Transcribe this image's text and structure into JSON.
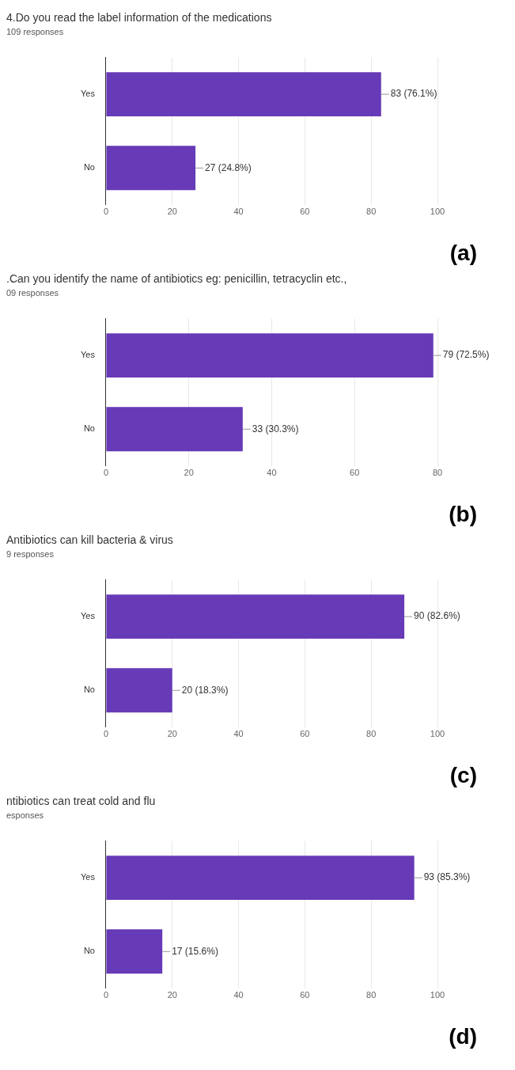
{
  "chart_data": [
    {
      "type": "bar",
      "orientation": "horizontal",
      "title": "4.Do you read the label information of the medications",
      "subtitle": "109 responses",
      "categories": [
        "Yes",
        "No"
      ],
      "values": [
        83,
        27
      ],
      "value_labels": [
        "83 (76.1%)",
        "27 (24.8%)"
      ],
      "color": "#673ab7",
      "xlim": [
        0,
        100
      ],
      "xticks": [
        0,
        20,
        40,
        60,
        80,
        100
      ],
      "grid": "x",
      "legend": false,
      "annotations": [
        "(a)"
      ]
    },
    {
      "type": "bar",
      "orientation": "horizontal",
      "title": ".Can you identify the name of antibiotics eg: penicillin, tetracyclin etc.,",
      "subtitle": "09 responses",
      "categories": [
        "Yes",
        "No"
      ],
      "values": [
        79,
        33
      ],
      "value_labels": [
        "79 (72.5%)",
        "33 (30.3%)"
      ],
      "color": "#673ab7",
      "xlim": [
        0,
        80
      ],
      "xticks": [
        0,
        20,
        40,
        60,
        80
      ],
      "grid": "x",
      "legend": false,
      "annotations": [
        "(b)"
      ]
    },
    {
      "type": "bar",
      "orientation": "horizontal",
      "title": "Antibiotics can kill bacteria & virus",
      "subtitle": "9 responses",
      "categories": [
        "Yes",
        "No"
      ],
      "values": [
        90,
        20
      ],
      "value_labels": [
        "90 (82.6%)",
        "20 (18.3%)"
      ],
      "color": "#673ab7",
      "xlim": [
        0,
        100
      ],
      "xticks": [
        0,
        20,
        40,
        60,
        80,
        100
      ],
      "grid": "x",
      "legend": false,
      "annotations": [
        "(c)"
      ]
    },
    {
      "type": "bar",
      "orientation": "horizontal",
      "title": "ntibiotics can treat cold and flu",
      "subtitle": "esponses",
      "categories": [
        "Yes",
        "No"
      ],
      "values": [
        93,
        17
      ],
      "value_labels": [
        "93 (85.3%)",
        "17 (15.6%)"
      ],
      "color": "#673ab7",
      "xlim": [
        0,
        100
      ],
      "xticks": [
        0,
        20,
        40,
        60,
        80,
        100
      ],
      "grid": "x",
      "legend": false,
      "annotations": [
        "(d)"
      ]
    }
  ]
}
